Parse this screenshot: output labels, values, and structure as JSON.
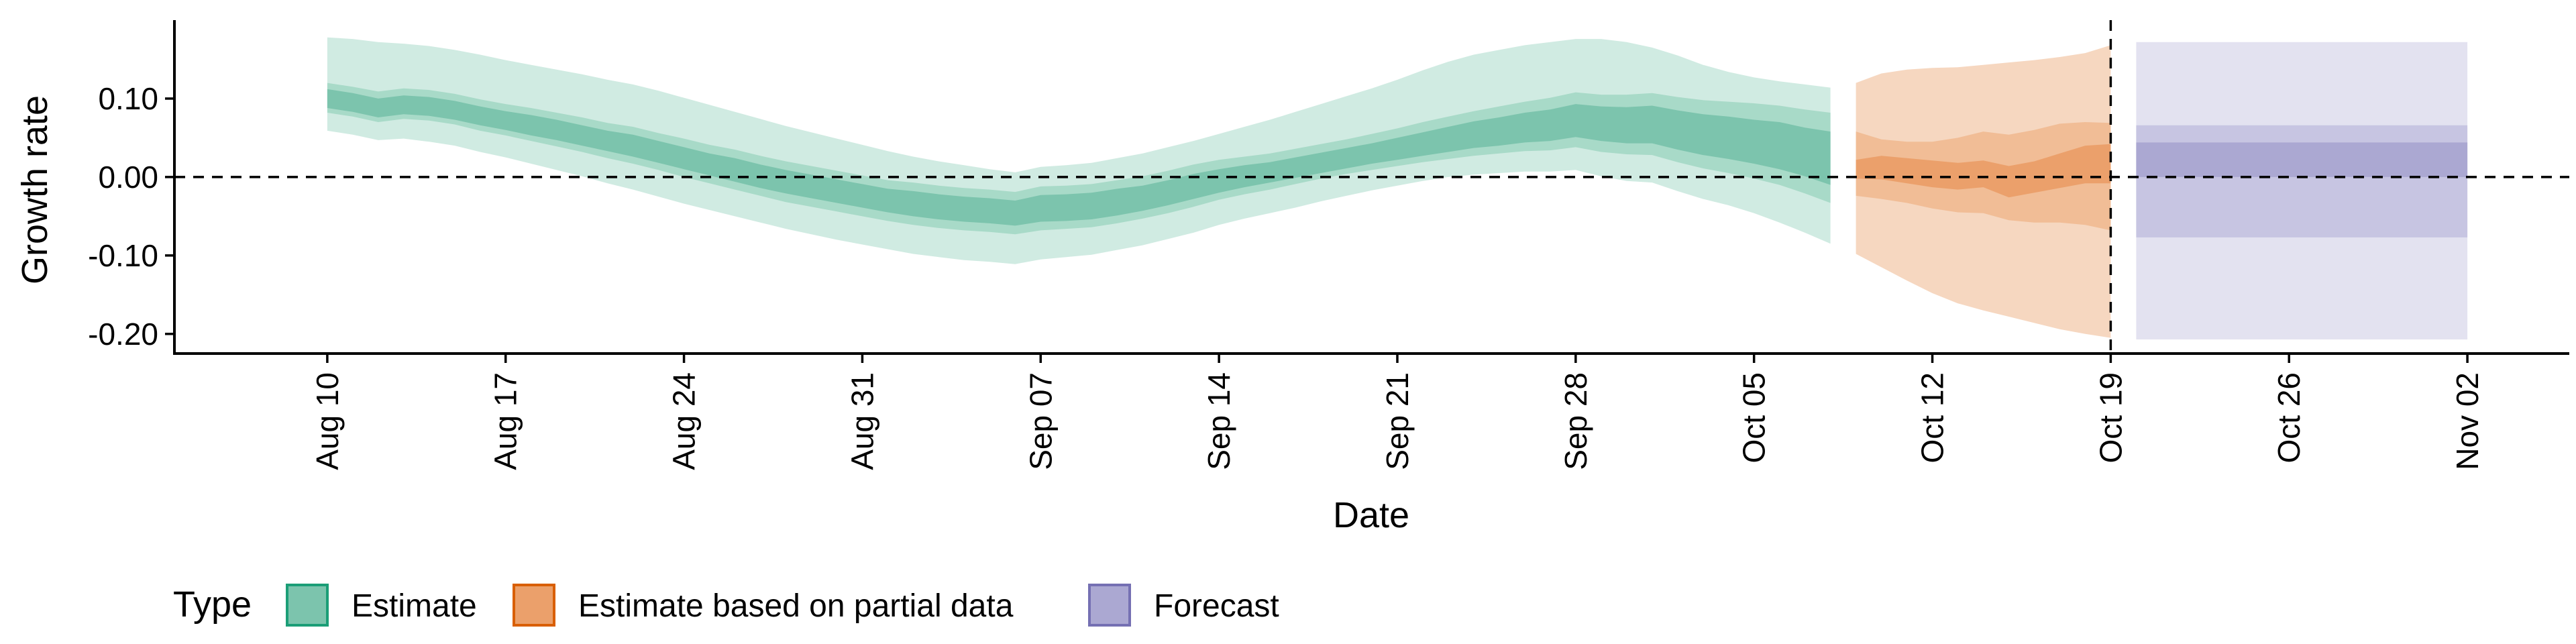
{
  "chart_data": {
    "type": "area",
    "title": "",
    "xlabel": "Date",
    "ylabel": "Growth rate",
    "x_ticks": [
      "Aug 10",
      "Aug 17",
      "Aug 24",
      "Aug 31",
      "Sep 07",
      "Sep 14",
      "Sep 21",
      "Sep 28",
      "Oct 05",
      "Oct 12",
      "Oct 19",
      "Oct 26",
      "Nov 02"
    ],
    "y_ticks": [
      "0.10",
      "0.00",
      "-0.10",
      "-0.20"
    ],
    "y_tick_values": [
      0.1,
      0.0,
      -0.1,
      -0.2
    ],
    "ylim": [
      -0.225,
      0.2
    ],
    "xlim": [
      "2020-08-04",
      "2020-11-06"
    ],
    "reference_hline": 0.0,
    "reference_vline": "2020-10-19",
    "grid": false,
    "legend": {
      "title": "Type",
      "position": "bottom-left",
      "entries": [
        {
          "label": "Estimate",
          "fill": "#7cc4ad",
          "border": "#1b9e77"
        },
        {
          "label": "Estimate based on partial data",
          "fill": "#eba06b",
          "border": "#d95f02"
        },
        {
          "label": "Forecast",
          "fill": "#aba8d2",
          "border": "#7570b3"
        }
      ]
    },
    "series": [
      {
        "name": "Estimate",
        "colors": {
          "outer": "#d0ebe2",
          "mid": "#a8dac8",
          "inner": "#7cc4ad"
        },
        "x": [
          "2020-08-10",
          "2020-08-11",
          "2020-08-12",
          "2020-08-13",
          "2020-08-14",
          "2020-08-15",
          "2020-08-16",
          "2020-08-17",
          "2020-08-18",
          "2020-08-19",
          "2020-08-20",
          "2020-08-21",
          "2020-08-22",
          "2020-08-23",
          "2020-08-24",
          "2020-08-25",
          "2020-08-26",
          "2020-08-27",
          "2020-08-28",
          "2020-08-29",
          "2020-08-30",
          "2020-08-31",
          "2020-09-01",
          "2020-09-02",
          "2020-09-03",
          "2020-09-04",
          "2020-09-05",
          "2020-09-06",
          "2020-09-07",
          "2020-09-08",
          "2020-09-09",
          "2020-09-10",
          "2020-09-11",
          "2020-09-12",
          "2020-09-13",
          "2020-09-14",
          "2020-09-15",
          "2020-09-16",
          "2020-09-17",
          "2020-09-18",
          "2020-09-19",
          "2020-09-20",
          "2020-09-21",
          "2020-09-22",
          "2020-09-23",
          "2020-09-24",
          "2020-09-25",
          "2020-09-26",
          "2020-09-27",
          "2020-09-28",
          "2020-09-29",
          "2020-09-30",
          "2020-10-01",
          "2020-10-02",
          "2020-10-03",
          "2020-10-04",
          "2020-10-05",
          "2020-10-06",
          "2020-10-07",
          "2020-10-08"
        ],
        "median": [
          0.1,
          0.095,
          0.088,
          0.092,
          0.09,
          0.085,
          0.078,
          0.072,
          0.066,
          0.06,
          0.053,
          0.046,
          0.04,
          0.032,
          0.024,
          0.016,
          0.009,
          0.001,
          -0.006,
          -0.012,
          -0.018,
          -0.024,
          -0.03,
          -0.034,
          -0.038,
          -0.041,
          -0.043,
          -0.046,
          -0.04,
          -0.039,
          -0.037,
          -0.032,
          -0.027,
          -0.02,
          -0.012,
          -0.005,
          0.001,
          0.006,
          0.012,
          0.018,
          0.024,
          0.03,
          0.036,
          0.042,
          0.048,
          0.054,
          0.058,
          0.063,
          0.066,
          0.072,
          0.068,
          0.066,
          0.067,
          0.06,
          0.054,
          0.05,
          0.045,
          0.04,
          0.032,
          0.024
        ],
        "lower_20": [
          0.088,
          0.083,
          0.076,
          0.08,
          0.078,
          0.073,
          0.066,
          0.06,
          0.053,
          0.047,
          0.04,
          0.033,
          0.026,
          0.018,
          0.01,
          0.002,
          -0.006,
          -0.014,
          -0.021,
          -0.027,
          -0.033,
          -0.039,
          -0.045,
          -0.05,
          -0.054,
          -0.057,
          -0.059,
          -0.062,
          -0.057,
          -0.056,
          -0.054,
          -0.049,
          -0.043,
          -0.036,
          -0.028,
          -0.02,
          -0.013,
          -0.007,
          -0.001,
          0.005,
          0.011,
          0.017,
          0.022,
          0.027,
          0.032,
          0.037,
          0.04,
          0.044,
          0.046,
          0.051,
          0.046,
          0.043,
          0.043,
          0.035,
          0.028,
          0.023,
          0.017,
          0.01,
          0.001,
          -0.01
        ],
        "upper_20": [
          0.112,
          0.107,
          0.1,
          0.104,
          0.102,
          0.097,
          0.09,
          0.084,
          0.079,
          0.073,
          0.066,
          0.059,
          0.054,
          0.046,
          0.038,
          0.03,
          0.024,
          0.016,
          0.009,
          0.003,
          -0.003,
          -0.009,
          -0.015,
          -0.018,
          -0.022,
          -0.025,
          -0.027,
          -0.03,
          -0.023,
          -0.022,
          -0.02,
          -0.015,
          -0.011,
          -0.004,
          0.004,
          0.01,
          0.015,
          0.019,
          0.025,
          0.031,
          0.037,
          0.043,
          0.05,
          0.057,
          0.064,
          0.071,
          0.076,
          0.082,
          0.086,
          0.093,
          0.09,
          0.089,
          0.091,
          0.085,
          0.08,
          0.077,
          0.073,
          0.07,
          0.063,
          0.058
        ],
        "lower_50": [
          0.082,
          0.077,
          0.07,
          0.074,
          0.072,
          0.067,
          0.059,
          0.053,
          0.046,
          0.039,
          0.032,
          0.024,
          0.017,
          0.009,
          0.0,
          -0.008,
          -0.016,
          -0.024,
          -0.032,
          -0.038,
          -0.044,
          -0.05,
          -0.056,
          -0.061,
          -0.065,
          -0.068,
          -0.07,
          -0.073,
          -0.068,
          -0.066,
          -0.064,
          -0.059,
          -0.053,
          -0.046,
          -0.038,
          -0.029,
          -0.022,
          -0.016,
          -0.009,
          -0.002,
          0.004,
          0.009,
          0.014,
          0.019,
          0.023,
          0.027,
          0.03,
          0.033,
          0.034,
          0.038,
          0.032,
          0.029,
          0.028,
          0.019,
          0.011,
          0.005,
          -0.002,
          -0.01,
          -0.021,
          -0.033
        ],
        "upper_50": [
          0.12,
          0.115,
          0.109,
          0.113,
          0.111,
          0.106,
          0.099,
          0.093,
          0.088,
          0.082,
          0.076,
          0.069,
          0.064,
          0.056,
          0.049,
          0.041,
          0.035,
          0.027,
          0.02,
          0.014,
          0.008,
          0.002,
          -0.004,
          -0.007,
          -0.011,
          -0.014,
          -0.016,
          -0.019,
          -0.012,
          -0.011,
          -0.009,
          -0.004,
          0.001,
          0.008,
          0.016,
          0.022,
          0.026,
          0.03,
          0.036,
          0.042,
          0.048,
          0.055,
          0.062,
          0.07,
          0.077,
          0.084,
          0.09,
          0.096,
          0.101,
          0.108,
          0.105,
          0.105,
          0.107,
          0.102,
          0.098,
          0.096,
          0.094,
          0.091,
          0.086,
          0.082
        ],
        "lower_90": [
          0.059,
          0.054,
          0.047,
          0.049,
          0.045,
          0.04,
          0.032,
          0.025,
          0.017,
          0.009,
          0.001,
          -0.008,
          -0.016,
          -0.025,
          -0.034,
          -0.042,
          -0.05,
          -0.058,
          -0.066,
          -0.073,
          -0.08,
          -0.086,
          -0.092,
          -0.098,
          -0.102,
          -0.106,
          -0.108,
          -0.111,
          -0.105,
          -0.102,
          -0.099,
          -0.093,
          -0.087,
          -0.079,
          -0.071,
          -0.061,
          -0.053,
          -0.046,
          -0.039,
          -0.031,
          -0.024,
          -0.017,
          -0.011,
          -0.005,
          0.0,
          0.003,
          0.005,
          0.007,
          0.007,
          0.009,
          0.001,
          -0.005,
          -0.007,
          -0.018,
          -0.028,
          -0.036,
          -0.046,
          -0.058,
          -0.071,
          -0.085
        ],
        "upper_90": [
          0.178,
          0.176,
          0.172,
          0.17,
          0.167,
          0.162,
          0.156,
          0.149,
          0.143,
          0.137,
          0.131,
          0.124,
          0.118,
          0.11,
          0.101,
          0.092,
          0.083,
          0.074,
          0.065,
          0.057,
          0.049,
          0.041,
          0.033,
          0.026,
          0.02,
          0.015,
          0.01,
          0.006,
          0.013,
          0.015,
          0.018,
          0.024,
          0.03,
          0.038,
          0.046,
          0.055,
          0.064,
          0.073,
          0.083,
          0.093,
          0.103,
          0.113,
          0.124,
          0.136,
          0.147,
          0.156,
          0.162,
          0.168,
          0.172,
          0.176,
          0.176,
          0.172,
          0.165,
          0.155,
          0.143,
          0.134,
          0.127,
          0.122,
          0.118,
          0.114
        ]
      },
      {
        "name": "Estimate based on partial data",
        "colors": {
          "outer": "#f6d7c0",
          "mid": "#f1bd96",
          "inner": "#eba06b"
        },
        "x": [
          "2020-10-09",
          "2020-10-10",
          "2020-10-11",
          "2020-10-12",
          "2020-10-13",
          "2020-10-14",
          "2020-10-15",
          "2020-10-16",
          "2020-10-17",
          "2020-10-18",
          "2020-10-19"
        ],
        "median": [
          0.01,
          0.012,
          0.008,
          0.004,
          0.001,
          0.004,
          -0.006,
          0.0,
          0.008,
          0.016,
          0.02
        ],
        "lower_20": [
          -0.002,
          -0.003,
          -0.008,
          -0.013,
          -0.016,
          -0.013,
          -0.026,
          -0.02,
          -0.014,
          -0.008,
          -0.008
        ],
        "upper_20": [
          0.022,
          0.027,
          0.024,
          0.021,
          0.018,
          0.021,
          0.014,
          0.02,
          0.03,
          0.04,
          0.042
        ],
        "lower_50": [
          -0.024,
          -0.028,
          -0.033,
          -0.04,
          -0.045,
          -0.046,
          -0.055,
          -0.058,
          -0.058,
          -0.061,
          -0.068
        ],
        "upper_50": [
          0.058,
          0.048,
          0.045,
          0.045,
          0.05,
          0.058,
          0.054,
          0.06,
          0.068,
          0.07,
          0.069
        ],
        "lower_90": [
          -0.098,
          -0.115,
          -0.132,
          -0.148,
          -0.161,
          -0.17,
          -0.178,
          -0.186,
          -0.194,
          -0.2,
          -0.205
        ],
        "upper_90": [
          0.12,
          0.132,
          0.137,
          0.139,
          0.14,
          0.143,
          0.146,
          0.149,
          0.153,
          0.158,
          0.168
        ]
      },
      {
        "name": "Forecast",
        "colors": {
          "outer": "#e3e2f0",
          "mid": "#c7c5e2",
          "inner": "#aba8d2"
        },
        "x": [
          "2020-10-20",
          "2020-11-02"
        ],
        "median": [
          0.0,
          0.0
        ],
        "lower_20": [
          0.0,
          0.0
        ],
        "upper_20": [
          0.044,
          0.044
        ],
        "lower_50": [
          -0.077,
          -0.077
        ],
        "upper_50": [
          0.066,
          0.066
        ],
        "lower_90": [
          -0.207,
          -0.207
        ],
        "upper_90": [
          0.172,
          0.172
        ]
      }
    ]
  }
}
